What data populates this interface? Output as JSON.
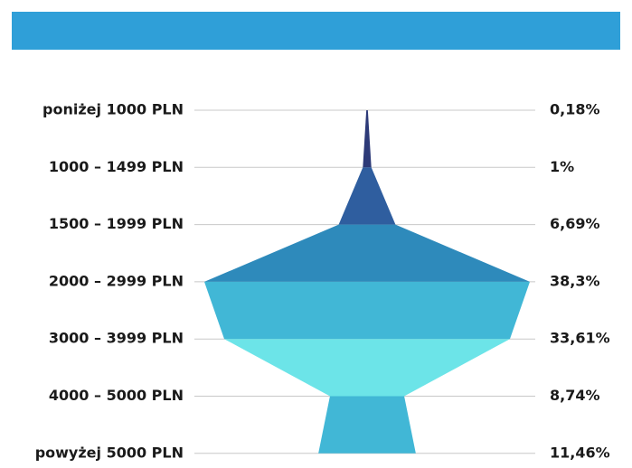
{
  "chart_data": {
    "type": "funnel",
    "categories": [
      "poniżej 1000 PLN",
      "1000 – 1499 PLN",
      "1500 – 1999 PLN",
      "2000 – 2999 PLN",
      "3000 – 3999 PLN",
      "4000 – 5000 PLN",
      "powyżej 5000 PLN"
    ],
    "values": [
      0.18,
      1,
      6.69,
      38.3,
      33.61,
      8.74,
      11.46
    ],
    "value_labels": [
      "0,18%",
      "1%",
      "6,69%",
      "38,3%",
      "33,61%",
      "8,74%",
      "11,46%"
    ],
    "colors": [
      "#2d3a78",
      "#2f5e9f",
      "#2e8abb",
      "#41b7d6",
      "#6ce4e8",
      "#41b7d6"
    ],
    "header_color": "#2f9fd8",
    "grid": true
  }
}
